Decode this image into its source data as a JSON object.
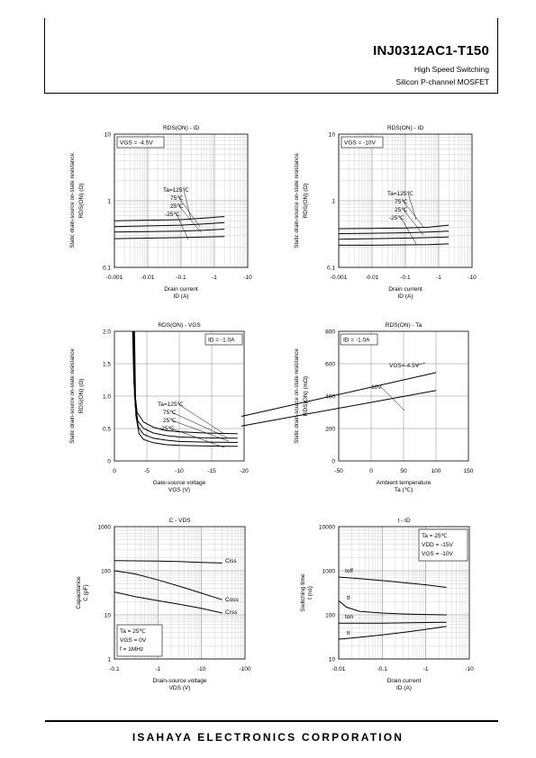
{
  "header": {
    "part_number": "INJ0312AC1-T150",
    "subtitle1": "High Speed Switching",
    "subtitle2": "Silicon P-channel MOSFET"
  },
  "footer": {
    "company": "ISAHAYA ELECTRONICS CORPORATION"
  },
  "chart_data": [
    {
      "type": "line",
      "title": "RDS(ON) - ID",
      "xlabel": "Drain current",
      "xunit": "ID (A)",
      "ylabel": "Static drain-source on-state resistance",
      "yunit": "RDS(ON) (Ω)",
      "x_scale": "log-neg",
      "y_scale": "log",
      "xlim": [
        -0.001,
        -10
      ],
      "ylim": [
        0.1,
        10
      ],
      "x_ticks": [
        "-0.001",
        "-0.01",
        "-0.1",
        "-1",
        "-10"
      ],
      "y_ticks": [
        "0.1",
        "1",
        "10"
      ],
      "condition": "VGS = -4.5V",
      "series": [
        {
          "name": "Ta=125℃",
          "points": [
            [
              0.001,
              0.5
            ],
            [
              0.01,
              0.51
            ],
            [
              0.1,
              0.52
            ],
            [
              0.5,
              0.55
            ],
            [
              2,
              0.58
            ]
          ]
        },
        {
          "name": "75℃",
          "points": [
            [
              0.001,
              0.41
            ],
            [
              0.01,
              0.42
            ],
            [
              0.1,
              0.43
            ],
            [
              0.5,
              0.45
            ],
            [
              2,
              0.47
            ]
          ]
        },
        {
          "name": "25℃",
          "points": [
            [
              0.001,
              0.34
            ],
            [
              0.01,
              0.345
            ],
            [
              0.1,
              0.35
            ],
            [
              0.5,
              0.36
            ],
            [
              2,
              0.375
            ]
          ]
        },
        {
          "name": "-25℃",
          "points": [
            [
              0.001,
              0.27
            ],
            [
              0.01,
              0.275
            ],
            [
              0.1,
              0.28
            ],
            [
              0.5,
              0.285
            ],
            [
              2,
              0.29
            ]
          ]
        }
      ]
    },
    {
      "type": "line",
      "title": "RDS(ON) - ID",
      "xlabel": "Drain current",
      "xunit": "ID (A)",
      "ylabel": "Static drain-source on-state resistance",
      "yunit": "RDS(ON) (Ω)",
      "x_scale": "log-neg",
      "y_scale": "log",
      "xlim": [
        -0.001,
        -10
      ],
      "ylim": [
        0.1,
        10
      ],
      "x_ticks": [
        "-0.001",
        "-0.01",
        "-0.1",
        "-1",
        "-10"
      ],
      "y_ticks": [
        "0.1",
        "1",
        "10"
      ],
      "condition": "VGS = -10V",
      "series": [
        {
          "name": "Ta=125℃",
          "points": [
            [
              0.001,
              0.38
            ],
            [
              0.01,
              0.385
            ],
            [
              0.1,
              0.39
            ],
            [
              0.5,
              0.4
            ],
            [
              2,
              0.43
            ]
          ]
        },
        {
          "name": "75℃",
          "points": [
            [
              0.001,
              0.32
            ],
            [
              0.01,
              0.325
            ],
            [
              0.1,
              0.33
            ],
            [
              0.5,
              0.34
            ],
            [
              2,
              0.35
            ]
          ]
        },
        {
          "name": "25℃",
          "points": [
            [
              0.001,
              0.265
            ],
            [
              0.01,
              0.27
            ],
            [
              0.1,
              0.275
            ],
            [
              0.5,
              0.28
            ],
            [
              2,
              0.285
            ]
          ]
        },
        {
          "name": "-25℃",
          "points": [
            [
              0.001,
              0.215
            ],
            [
              0.01,
              0.215
            ],
            [
              0.1,
              0.218
            ],
            [
              0.5,
              0.22
            ],
            [
              2,
              0.225
            ]
          ]
        }
      ]
    },
    {
      "type": "line",
      "title": "RDS(ON) - VGS",
      "xlabel": "Gate-source voltage",
      "xunit": "VGS (V)",
      "ylabel": "Static drain-source on-state resistance",
      "yunit": "RDS(ON) (Ω)",
      "x_scale": "linear-neg",
      "y_scale": "linear",
      "xlim": [
        0,
        -20
      ],
      "ylim": [
        0,
        2
      ],
      "x_ticks": [
        "0",
        "-5",
        "-10",
        "-15",
        "-20"
      ],
      "y_ticks": [
        "0",
        "0.5",
        "1.0",
        "1.5",
        "2.0"
      ],
      "condition": "ID = -1.0A",
      "series": [
        {
          "name": "Ta=125℃",
          "points": [
            [
              2.8,
              2.0
            ],
            [
              3,
              1.2
            ],
            [
              3.5,
              0.75
            ],
            [
              4.5,
              0.6
            ],
            [
              6,
              0.52
            ],
            [
              8,
              0.47
            ],
            [
              10,
              0.45
            ],
            [
              14,
              0.43
            ],
            [
              19,
              0.42
            ]
          ]
        },
        {
          "name": "75℃",
          "points": [
            [
              2.9,
              2.0
            ],
            [
              3.1,
              1.0
            ],
            [
              3.6,
              0.62
            ],
            [
              4.5,
              0.5
            ],
            [
              6,
              0.43
            ],
            [
              8,
              0.39
            ],
            [
              10,
              0.37
            ],
            [
              14,
              0.355
            ],
            [
              19,
              0.35
            ]
          ]
        },
        {
          "name": "25℃",
          "points": [
            [
              3.0,
              2.0
            ],
            [
              3.2,
              0.85
            ],
            [
              3.7,
              0.52
            ],
            [
              4.5,
              0.41
            ],
            [
              6,
              0.35
            ],
            [
              8,
              0.32
            ],
            [
              10,
              0.3
            ],
            [
              14,
              0.29
            ],
            [
              19,
              0.285
            ]
          ]
        },
        {
          "name": "-25℃",
          "points": [
            [
              3.1,
              2.0
            ],
            [
              3.3,
              0.7
            ],
            [
              3.8,
              0.42
            ],
            [
              4.5,
              0.33
            ],
            [
              6,
              0.28
            ],
            [
              8,
              0.25
            ],
            [
              10,
              0.24
            ],
            [
              14,
              0.23
            ],
            [
              19,
              0.225
            ]
          ]
        }
      ]
    },
    {
      "type": "line",
      "title": "RDS(ON) - Ta",
      "xlabel": "Ambient temperature",
      "xunit": "Ta (℃)",
      "ylabel": "Static drain-source on-state resistance",
      "yunit": "RDS(ON) (mΩ)",
      "x_scale": "linear",
      "y_scale": "linear",
      "xlim": [
        -50,
        150
      ],
      "ylim": [
        0,
        800
      ],
      "x_ticks": [
        "-50",
        "0",
        "50",
        "100",
        "150"
      ],
      "y_ticks": [
        "0",
        "200",
        "400",
        "600",
        "800"
      ],
      "condition": "ID = -1.0A",
      "series": [
        {
          "name": "VGS=-4.5V",
          "points": [
            [
              -25,
              275
            ],
            [
              125,
              545
            ]
          ]
        },
        {
          "name": "-10V",
          "points": [
            [
              -25,
              215
            ],
            [
              125,
              435
            ]
          ]
        }
      ]
    },
    {
      "type": "line",
      "title": "C - VDS",
      "xlabel": "Drain-source voltage",
      "xunit": "VDS (V)",
      "ylabel": "Capacitance",
      "yunit": "C (pF)",
      "x_scale": "log-neg",
      "y_scale": "log",
      "xlim": [
        -0.1,
        -100
      ],
      "ylim": [
        1,
        1000
      ],
      "x_ticks": [
        "-0.1",
        "-1",
        "-10",
        "-100"
      ],
      "y_ticks": [
        "1",
        "10",
        "100",
        "1000"
      ],
      "condition_lines": [
        "Ta = 25℃",
        "VGS = 0V",
        "f = 1MHz"
      ],
      "series": [
        {
          "name": "Ciss",
          "points": [
            [
              0.1,
              170
            ],
            [
              0.3,
              168
            ],
            [
              1,
              165
            ],
            [
              3,
              162
            ],
            [
              10,
              155
            ],
            [
              30,
              150
            ]
          ]
        },
        {
          "name": "Coss",
          "points": [
            [
              0.1,
              100
            ],
            [
              0.3,
              85
            ],
            [
              1,
              62
            ],
            [
              3,
              45
            ],
            [
              10,
              31
            ],
            [
              30,
              22
            ]
          ]
        },
        {
          "name": "Crss",
          "points": [
            [
              0.1,
              33
            ],
            [
              0.3,
              26
            ],
            [
              1,
              21
            ],
            [
              3,
              17.5
            ],
            [
              10,
              14
            ],
            [
              30,
              11
            ]
          ]
        }
      ]
    },
    {
      "type": "line",
      "title": "t - ID",
      "xlabel": "Drain current",
      "xunit": "ID (A)",
      "ylabel": "Switching time",
      "yunit": "t (ns)",
      "x_scale": "log-neg",
      "y_scale": "log",
      "xlim": [
        -0.01,
        -10
      ],
      "ylim": [
        10,
        10000
      ],
      "x_ticks": [
        "-0.01",
        "-0.1",
        "-1",
        "-10"
      ],
      "y_ticks": [
        "10",
        "100",
        "1000",
        "10000"
      ],
      "condition_lines": [
        "Ta = 25℃",
        "VDD = -15V",
        "VGS = -10V"
      ],
      "series": [
        {
          "name": "toff",
          "points": [
            [
              0.01,
              720
            ],
            [
              0.03,
              660
            ],
            [
              0.1,
              600
            ],
            [
              0.3,
              540
            ],
            [
              1,
              480
            ],
            [
              3,
              420
            ]
          ]
        },
        {
          "name": "tf",
          "points": [
            [
              0.01,
              210
            ],
            [
              0.015,
              150
            ],
            [
              0.03,
              120
            ],
            [
              0.1,
              110
            ],
            [
              0.3,
              105
            ],
            [
              1,
              102
            ],
            [
              3,
              100
            ]
          ]
        },
        {
          "name": "ton",
          "points": [
            [
              0.01,
              65
            ],
            [
              0.1,
              65
            ],
            [
              1,
              67
            ],
            [
              3,
              68
            ]
          ]
        },
        {
          "name": "tr",
          "points": [
            [
              0.01,
              28
            ],
            [
              0.03,
              31
            ],
            [
              0.1,
              35
            ],
            [
              0.3,
              40
            ],
            [
              1,
              47
            ],
            [
              3,
              55
            ]
          ]
        }
      ]
    }
  ]
}
